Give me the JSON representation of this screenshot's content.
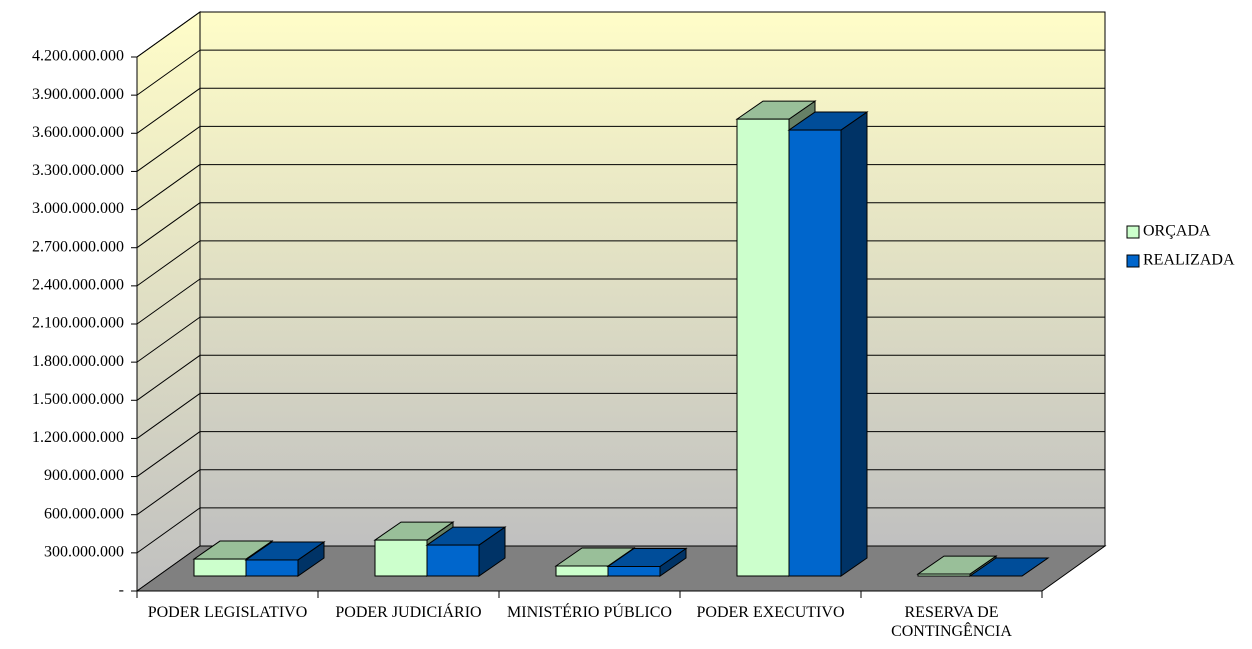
{
  "chart_data": {
    "type": "bar3d",
    "categories": [
      "PODER LEGISLATIVO",
      "PODER JUDICIÁRIO",
      "MINISTÉRIO PÚBLICO",
      "PODER EXECUTIVO",
      "RESERVA DE CONTINGÊNCIA"
    ],
    "series": [
      {
        "name": "ORÇADA",
        "color": "#ccffcc",
        "values": [
          132000000,
          280000000,
          78000000,
          3560000000,
          15000000
        ]
      },
      {
        "name": "REALIZADA",
        "color": "#0066cc",
        "values": [
          125000000,
          241000000,
          74000000,
          3475000000,
          0
        ]
      }
    ],
    "ylim": [
      0,
      4200000000
    ],
    "yticks": [
      {
        "value": 0,
        "label": "-"
      },
      {
        "value": 300000000,
        "label": "300.000.000"
      },
      {
        "value": 600000000,
        "label": "600.000.000"
      },
      {
        "value": 900000000,
        "label": "900.000.000"
      },
      {
        "value": 1200000000,
        "label": "1.200.000.000"
      },
      {
        "value": 1500000000,
        "label": "1.500.000.000"
      },
      {
        "value": 1800000000,
        "label": "1.800.000.000"
      },
      {
        "value": 2100000000,
        "label": "2.100.000.000"
      },
      {
        "value": 2400000000,
        "label": "2.400.000.000"
      },
      {
        "value": 2700000000,
        "label": "2.700.000.000"
      },
      {
        "value": 3000000000,
        "label": "3.000.000.000"
      },
      {
        "value": 3300000000,
        "label": "3.300.000.000"
      },
      {
        "value": 3600000000,
        "label": "3.600.000.000"
      },
      {
        "value": 3900000000,
        "label": "3.900.000.000"
      },
      {
        "value": 4200000000,
        "label": "4.200.000.000"
      }
    ],
    "grid": true,
    "legend": "right"
  }
}
